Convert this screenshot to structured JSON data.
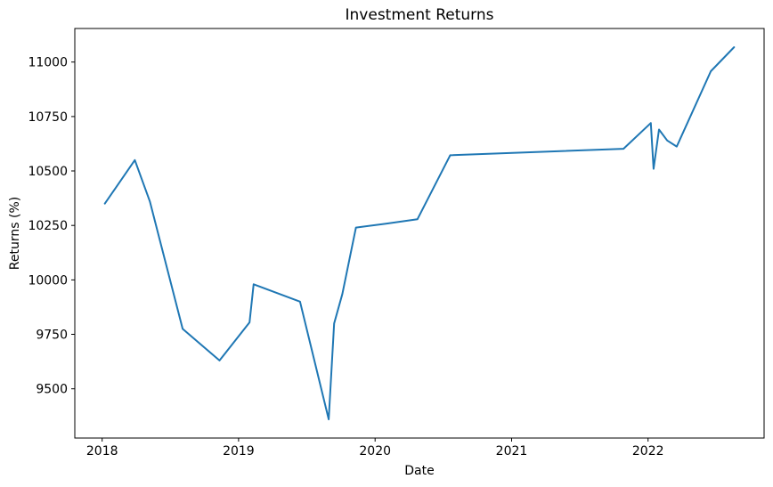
{
  "chart_data": {
    "type": "line",
    "title": "Investment Returns",
    "xlabel": "Date",
    "ylabel": "Returns (%)",
    "series_color": "#1f77b4",
    "axis_color": "#000000",
    "background_color": "#ffffff",
    "grid": false,
    "legend": "none",
    "x": [
      2018.02,
      2018.24,
      2018.35,
      2018.59,
      2018.86,
      2019.08,
      2019.11,
      2019.45,
      2019.66,
      2019.7,
      2019.76,
      2019.86,
      2020.08,
      2020.31,
      2020.55,
      2021.82,
      2022.02,
      2022.04,
      2022.08,
      2022.14,
      2022.21,
      2022.46,
      2022.63
    ],
    "values": [
      10350,
      10550,
      10360,
      9775,
      9630,
      9805,
      9980,
      9900,
      9360,
      9800,
      9935,
      10240,
      10258,
      10278,
      10572,
      10602,
      10720,
      10510,
      10690,
      10640,
      10612,
      10958,
      11068
    ],
    "xlim": [
      2017.8,
      2022.85
    ],
    "ylim": [
      9274,
      11154
    ],
    "xtick_values": [
      2018,
      2019,
      2020,
      2021,
      2022
    ],
    "xtick_labels": [
      "2018",
      "2019",
      "2020",
      "2021",
      "2022"
    ],
    "ytick_values": [
      9500,
      9750,
      10000,
      10250,
      10500,
      10750,
      11000
    ],
    "ytick_labels": [
      "9500",
      "9750",
      "10000",
      "10250",
      "10500",
      "10750",
      "11000"
    ]
  }
}
